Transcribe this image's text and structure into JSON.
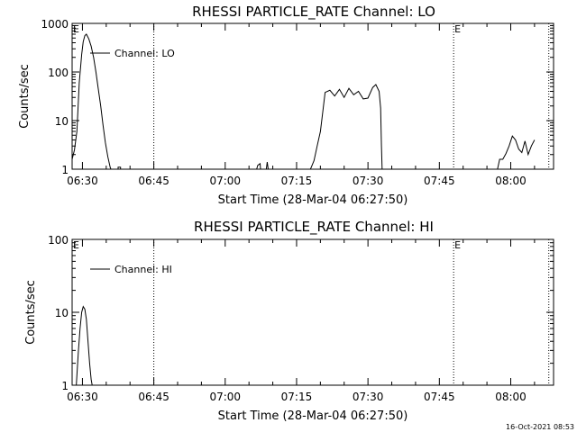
{
  "footer": {
    "timestamp": "16-Oct-2021 08:53"
  },
  "chart_data": [
    {
      "type": "line",
      "title": "RHESSI PARTICLE_RATE Channel: LO",
      "xlabel": "Start Time (28-Mar-04 06:27:50)",
      "ylabel": "Counts/sec",
      "yscale": "log",
      "xlim": [
        "06:27:50",
        "08:09:00"
      ],
      "ylim": [
        1,
        1000
      ],
      "xticks": [
        "06:30",
        "06:45",
        "07:00",
        "07:15",
        "07:30",
        "07:45",
        "08:00"
      ],
      "yticks": [
        "1",
        "10",
        "100",
        "1000"
      ],
      "legend": {
        "label": "Channel: LO",
        "position": "top-left"
      },
      "markers": [
        {
          "time": "06:45",
          "label": ""
        },
        {
          "time": "07:48",
          "label": "E"
        },
        {
          "time": "08:08",
          "label": ""
        }
      ],
      "corner_label": "E",
      "series": [
        {
          "x": [
            "06:27:50",
            "06:28:20",
            "06:28:50",
            "06:29:20",
            "06:29:50",
            "06:30:10",
            "06:30:30",
            "06:30:50",
            "06:31:20",
            "06:31:50",
            "06:32:20",
            "06:32:50",
            "06:33:20",
            "06:33:50",
            "06:34:20",
            "06:34:50",
            "06:35:20",
            "06:35:50",
            "06:36:10",
            "06:36:20",
            "06:37:30",
            "06:37:30",
            "06:38:00",
            "06:38:00",
            "07:06:20",
            "07:06:50",
            "07:07:20",
            "07:07:30",
            "07:08:30",
            "07:08:50",
            "07:09:10",
            "07:17:20",
            "07:18:00",
            "07:18:40",
            "07:19:20",
            "07:20:00",
            "07:20:30",
            "07:21:00",
            "07:22:00",
            "07:23:00",
            "07:24:00",
            "07:25:00",
            "07:26:00",
            "07:27:00",
            "07:28:00",
            "07:29:00",
            "07:30:00",
            "07:31:00",
            "07:31:40",
            "07:32:20",
            "07:32:40",
            "07:32:50",
            "07:33:00",
            "07:57:00",
            "07:57:40",
            "07:58:20",
            "07:59:00",
            "07:59:40",
            "08:00:20",
            "08:01:00",
            "08:01:40",
            "08:02:20",
            "08:03:00",
            "08:03:40",
            "08:04:20",
            "08:05:00"
          ],
          "y": [
            1.6,
            2.5,
            6,
            60,
            230,
            420,
            560,
            600,
            480,
            340,
            200,
            100,
            45,
            20,
            8,
            3.5,
            1.8,
            1.1,
            0.9,
            0.8,
            0.8,
            1.1,
            1.1,
            0.8,
            0.8,
            1.2,
            1.3,
            0.8,
            0.8,
            1.4,
            0.8,
            0.8,
            1.05,
            1.5,
            3,
            6,
            15,
            38,
            42,
            32,
            44,
            30,
            46,
            34,
            40,
            28,
            29,
            48,
            55,
            40,
            18,
            3,
            0.8,
            0.8,
            1.6,
            1.6,
            2.1,
            3,
            4.8,
            4,
            2.6,
            2.2,
            3.8,
            2,
            3,
            4
          ]
        }
      ]
    },
    {
      "type": "line",
      "title": "RHESSI PARTICLE_RATE Channel: HI",
      "xlabel": "Start Time (28-Mar-04 06:27:50)",
      "ylabel": "Counts/sec",
      "yscale": "log",
      "xlim": [
        "06:27:50",
        "08:09:00"
      ],
      "ylim": [
        1,
        100
      ],
      "xticks": [
        "06:30",
        "06:45",
        "07:00",
        "07:15",
        "07:30",
        "07:45",
        "08:00"
      ],
      "yticks": [
        "1",
        "10",
        "100"
      ],
      "legend": {
        "label": "Channel: HI",
        "position": "top-left"
      },
      "markers": [
        {
          "time": "06:45",
          "label": ""
        },
        {
          "time": "07:48",
          "label": "E"
        },
        {
          "time": "08:08",
          "label": ""
        }
      ],
      "corner_label": "E",
      "series": [
        {
          "x": [
            "06:28:40",
            "06:29:10",
            "06:29:30",
            "06:29:50",
            "06:30:10",
            "06:30:30",
            "06:30:50",
            "06:31:10",
            "06:31:30",
            "06:31:50",
            "06:32:10"
          ],
          "y": [
            0.9,
            3,
            6,
            10,
            12,
            11,
            8,
            4,
            2,
            1.2,
            0.9
          ]
        }
      ]
    }
  ]
}
